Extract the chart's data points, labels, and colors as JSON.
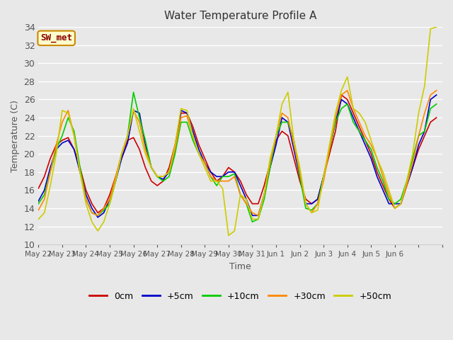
{
  "title": "Water Temperature Profile A",
  "xlabel": "Time",
  "ylabel": "Temperature (C)",
  "ylim": [
    10,
    34
  ],
  "yticks": [
    10,
    12,
    14,
    16,
    18,
    20,
    22,
    24,
    26,
    28,
    30,
    32,
    34
  ],
  "background_color": "#e8e8e8",
  "grid_color": "#ffffff",
  "legend_labels": [
    "0cm",
    "+5cm",
    "+10cm",
    "+30cm",
    "+50cm"
  ],
  "legend_colors": [
    "#cc0000",
    "#0000cc",
    "#00cc00",
    "#ff8800",
    "#cccc00"
  ],
  "annotation_text": "SW_met",
  "annotation_bg": "#ffffcc",
  "annotation_border": "#cc8800",
  "annotation_text_color": "#880000",
  "series": {
    "0cm": {
      "color": "#cc0000",
      "times": [
        0,
        0.5,
        1,
        1.5,
        2,
        2.5,
        3,
        3.5,
        4,
        4.5,
        5,
        5.5,
        6,
        6.5,
        7,
        7.5,
        8,
        8.5,
        9,
        9.5,
        10,
        10.5,
        11,
        11.5,
        12,
        12.5,
        13,
        13.5,
        14,
        14.5,
        15,
        15.5,
        16,
        16.5,
        17,
        17.5,
        18,
        18.5,
        19,
        19.5,
        20,
        20.5,
        21,
        21.5,
        22,
        22.5,
        23,
        23.5,
        24,
        24.5,
        25,
        25.5,
        26,
        26.5,
        27,
        27.5,
        28,
        28.5,
        29,
        29.5,
        30,
        30.5,
        31,
        31.5,
        32,
        32.5,
        33,
        33.5
      ],
      "values": [
        16.2,
        17.5,
        19.5,
        21.0,
        21.5,
        21.8,
        20.5,
        18.5,
        16.0,
        14.5,
        13.5,
        14.0,
        15.5,
        17.5,
        19.5,
        21.5,
        21.8,
        20.5,
        18.5,
        17.0,
        16.5,
        17.0,
        18.5,
        21.0,
        24.5,
        24.5,
        23.0,
        21.0,
        19.5,
        18.0,
        17.0,
        17.5,
        18.5,
        18.0,
        17.0,
        15.5,
        14.5,
        14.5,
        16.5,
        19.0,
        21.5,
        22.5,
        22.0,
        19.5,
        17.0,
        15.0,
        14.5,
        15.0,
        17.5,
        20.0,
        22.5,
        26.5,
        26.0,
        24.5,
        23.0,
        21.5,
        20.0,
        18.0,
        16.5,
        15.0,
        14.0,
        14.5,
        16.5,
        18.5,
        20.5,
        22.0,
        23.5,
        24.0
      ]
    },
    "+5cm": {
      "color": "#0000cc",
      "times": [
        0,
        0.5,
        1,
        1.5,
        2,
        2.5,
        3,
        3.5,
        4,
        4.5,
        5,
        5.5,
        6,
        6.5,
        7,
        7.5,
        8,
        8.5,
        9,
        9.5,
        10,
        10.5,
        11,
        11.5,
        12,
        12.5,
        13,
        13.5,
        14,
        14.5,
        15,
        15.5,
        16,
        16.5,
        17,
        17.5,
        18,
        18.5,
        19,
        19.5,
        20,
        20.5,
        21,
        21.5,
        22,
        22.5,
        23,
        23.5,
        24,
        24.5,
        25,
        25.5,
        26,
        26.5,
        27,
        27.5,
        28,
        28.5,
        29,
        29.5,
        30,
        30.5,
        31,
        31.5,
        32,
        32.5,
        33,
        33.5
      ],
      "values": [
        14.8,
        16.0,
        18.5,
        20.5,
        21.2,
        21.5,
        20.5,
        18.0,
        15.5,
        14.0,
        13.0,
        13.5,
        15.0,
        17.0,
        19.5,
        21.2,
        24.8,
        24.5,
        21.0,
        18.5,
        17.5,
        17.2,
        18.0,
        20.5,
        24.8,
        24.5,
        22.5,
        20.5,
        19.0,
        18.0,
        17.5,
        17.5,
        18.0,
        18.0,
        16.5,
        15.0,
        13.2,
        13.2,
        15.5,
        18.5,
        21.0,
        24.0,
        23.5,
        20.5,
        17.5,
        14.5,
        14.5,
        15.0,
        17.5,
        20.5,
        23.5,
        26.0,
        25.5,
        24.0,
        22.5,
        21.0,
        19.5,
        17.5,
        16.0,
        14.5,
        14.5,
        14.5,
        16.5,
        18.5,
        21.0,
        22.5,
        26.0,
        26.5
      ]
    },
    "+10cm": {
      "color": "#00cc00",
      "times": [
        0,
        0.5,
        1,
        1.5,
        2,
        2.5,
        3,
        3.5,
        4,
        4.5,
        5,
        5.5,
        6,
        6.5,
        7,
        7.5,
        8,
        8.5,
        9,
        9.5,
        10,
        10.5,
        11,
        11.5,
        12,
        12.5,
        13,
        13.5,
        14,
        14.5,
        15,
        15.5,
        16,
        16.5,
        17,
        17.5,
        18,
        18.5,
        19,
        19.5,
        20,
        20.5,
        21,
        21.5,
        22,
        22.5,
        23,
        23.5,
        24,
        24.5,
        25,
        25.5,
        26,
        26.5,
        27,
        27.5,
        28,
        28.5,
        29,
        29.5,
        30,
        30.5,
        31,
        31.5,
        32,
        32.5,
        33,
        33.5
      ],
      "values": [
        14.5,
        15.5,
        18.0,
        20.5,
        22.0,
        24.0,
        22.5,
        18.5,
        15.0,
        13.5,
        13.2,
        13.8,
        14.5,
        17.0,
        20.0,
        22.0,
        26.8,
        24.0,
        21.5,
        18.5,
        17.5,
        17.0,
        17.5,
        20.0,
        23.5,
        23.5,
        21.5,
        20.0,
        19.0,
        17.5,
        16.5,
        17.5,
        17.5,
        17.8,
        15.5,
        14.5,
        12.5,
        12.8,
        15.0,
        18.5,
        22.0,
        23.5,
        23.5,
        21.5,
        17.5,
        14.0,
        13.8,
        14.5,
        17.5,
        20.5,
        23.5,
        25.0,
        25.5,
        23.5,
        22.5,
        21.5,
        20.5,
        18.5,
        17.0,
        15.0,
        14.5,
        15.0,
        17.0,
        19.5,
        22.0,
        22.5,
        25.0,
        25.5
      ]
    },
    "+30cm": {
      "color": "#ff8800",
      "times": [
        0,
        0.5,
        1,
        1.5,
        2,
        2.5,
        3,
        3.5,
        4,
        4.5,
        5,
        5.5,
        6,
        6.5,
        7,
        7.5,
        8,
        8.5,
        9,
        9.5,
        10,
        10.5,
        11,
        11.5,
        12,
        12.5,
        13,
        13.5,
        14,
        14.5,
        15,
        15.5,
        16,
        16.5,
        17,
        17.5,
        18,
        18.5,
        19,
        19.5,
        20,
        20.5,
        21,
        21.5,
        22,
        22.5,
        23,
        23.5,
        24,
        24.5,
        25,
        25.5,
        26,
        26.5,
        27,
        27.5,
        28,
        28.5,
        29,
        29.5,
        30,
        30.5,
        31,
        31.5,
        32,
        32.5,
        33,
        33.5
      ],
      "values": [
        13.8,
        15.0,
        18.0,
        21.0,
        23.5,
        24.8,
        22.0,
        18.0,
        15.0,
        13.5,
        13.2,
        14.0,
        15.0,
        17.5,
        20.0,
        22.0,
        24.8,
        23.5,
        20.5,
        18.5,
        17.5,
        17.5,
        18.0,
        20.5,
        24.0,
        24.2,
        22.0,
        20.0,
        19.0,
        17.5,
        17.0,
        17.0,
        17.0,
        17.5,
        15.5,
        14.5,
        13.5,
        13.2,
        15.5,
        19.0,
        22.0,
        24.5,
        24.0,
        21.0,
        18.0,
        14.5,
        13.5,
        14.5,
        17.0,
        20.5,
        24.0,
        26.5,
        27.0,
        25.0,
        23.5,
        22.0,
        21.0,
        19.5,
        17.5,
        15.5,
        14.0,
        14.5,
        16.5,
        19.0,
        22.0,
        24.5,
        26.5,
        27.0
      ]
    },
    "+50cm": {
      "color": "#cccc00",
      "times": [
        0,
        0.5,
        1,
        1.5,
        2,
        2.5,
        3,
        3.5,
        4,
        4.5,
        5,
        5.5,
        6,
        6.5,
        7,
        7.5,
        8,
        8.5,
        9,
        9.5,
        10,
        10.5,
        11,
        11.5,
        12,
        12.5,
        13,
        13.5,
        14,
        14.5,
        15,
        15.5,
        16,
        16.5,
        17,
        17.5,
        18,
        18.5,
        19,
        19.5,
        20,
        20.5,
        21,
        21.5,
        22,
        22.5,
        23,
        23.5,
        24,
        24.5,
        25,
        25.5,
        26,
        26.5,
        27,
        27.5,
        28,
        28.5,
        29,
        29.5,
        30,
        30.5,
        31,
        31.5,
        32,
        32.5,
        33,
        33.5
      ],
      "values": [
        12.8,
        13.5,
        16.5,
        20.0,
        24.8,
        24.5,
        22.0,
        18.0,
        14.5,
        12.5,
        11.5,
        12.5,
        14.5,
        17.0,
        20.0,
        22.0,
        25.0,
        22.5,
        20.0,
        18.5,
        17.5,
        17.5,
        18.0,
        21.0,
        25.0,
        24.8,
        22.0,
        20.0,
        18.5,
        17.0,
        17.0,
        16.2,
        11.0,
        11.5,
        15.5,
        15.0,
        12.8,
        12.8,
        15.5,
        19.5,
        22.0,
        25.5,
        26.8,
        21.5,
        18.5,
        14.5,
        13.5,
        13.8,
        17.5,
        21.0,
        24.5,
        27.0,
        28.5,
        25.0,
        24.5,
        23.5,
        21.5,
        19.5,
        18.0,
        16.0,
        14.0,
        14.5,
        17.0,
        20.0,
        24.5,
        27.5,
        33.8,
        34.0
      ]
    }
  },
  "x_tick_positions": [
    0,
    2,
    4,
    6,
    8,
    10,
    12,
    14,
    16,
    18,
    20,
    22,
    24,
    26,
    28,
    30,
    32,
    34
  ],
  "x_tick_labels": [
    "May 22",
    "May 23",
    "May 24",
    "May 25",
    "May 26",
    "May 27",
    "May 28",
    "May 29",
    "May 30",
    "May 31",
    "Jun 1",
    "Jun 2",
    "Jun 3",
    "Jun 4",
    "Jun 5",
    "Jun 6",
    "",
    ""
  ]
}
